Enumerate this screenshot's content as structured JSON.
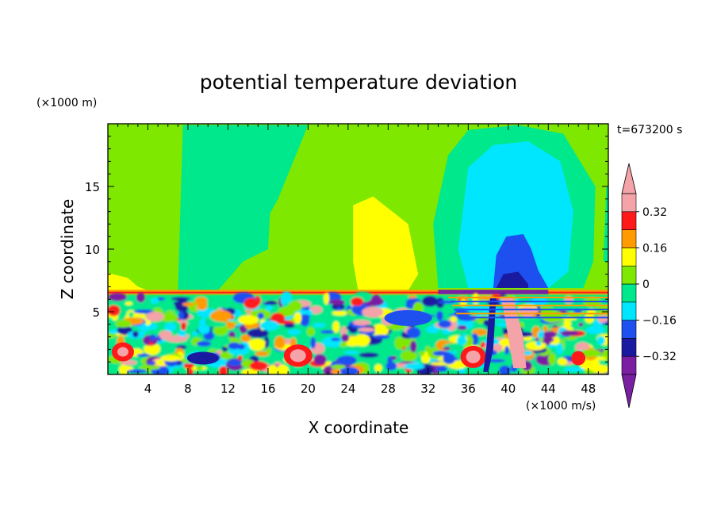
{
  "chart_data": {
    "type": "heatmap",
    "title": "potential temperature deviation",
    "xlabel": "X coordinate",
    "ylabel": "Z coordinate",
    "x_unit": "(×1000 m/s)",
    "y_unit": "(×1000 m)",
    "time_label": "t=673200 s",
    "xlim": [
      0,
      50
    ],
    "ylim": [
      0,
      20
    ],
    "x_ticks": [
      4,
      8,
      12,
      16,
      20,
      24,
      28,
      32,
      36,
      40,
      44,
      48
    ],
    "y_ticks": [
      5,
      10,
      15
    ],
    "colorbar": {
      "levels": [
        -0.4,
        -0.32,
        -0.24,
        -0.16,
        -0.08,
        0,
        0.08,
        0.16,
        0.24,
        0.32,
        0.4
      ],
      "tick_labels": [
        "0.32",
        "0.16",
        "0",
        "−0.16",
        "−0.32"
      ],
      "tick_values": [
        0.32,
        0.16,
        0,
        -0.16,
        -0.32
      ],
      "colors": [
        "#7a1fa2",
        "#1a1aa0",
        "#1e50f0",
        "#00e6ff",
        "#00e88c",
        "#7fe800",
        "#ffff00",
        "#ff9a00",
        "#ff1a1a",
        "#f4a3a8"
      ],
      "under_color": "#7a1fa2",
      "over_color": "#f4a3a8",
      "extend": "both"
    },
    "background_level": 0.04
  }
}
